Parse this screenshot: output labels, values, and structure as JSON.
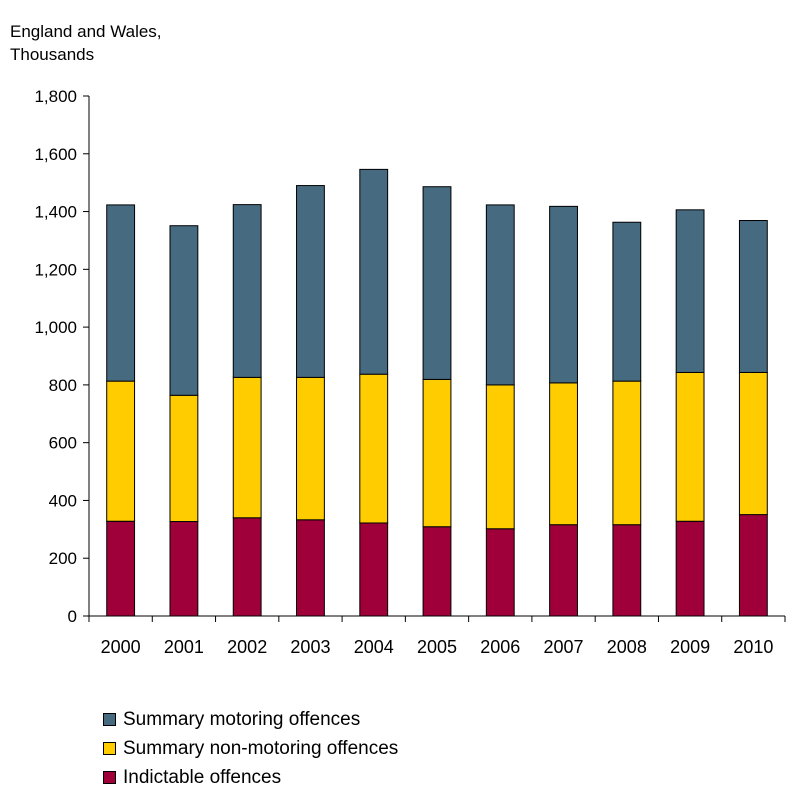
{
  "chart_data": {
    "type": "bar",
    "stacked": true,
    "ylabel_lines": [
      "England and Wales,",
      "Thousands"
    ],
    "categories": [
      "2000",
      "2001",
      "2002",
      "2003",
      "2004",
      "2005",
      "2006",
      "2007",
      "2008",
      "2009",
      "2010"
    ],
    "ylim": [
      0,
      1800
    ],
    "yticks": [
      0,
      200,
      400,
      600,
      800,
      1000,
      1200,
      1400,
      1600,
      1800
    ],
    "ytick_labels": [
      "0",
      "200",
      "400",
      "600",
      "800",
      "1,000",
      "1,200",
      "1,400",
      "1,600",
      "1,800"
    ],
    "grid": false,
    "legend_position": "bottom",
    "series": [
      {
        "name": "Indictable offences",
        "color": "#a0003a",
        "values": [
          328,
          327,
          340,
          333,
          322,
          309,
          302,
          316,
          316,
          328,
          351
        ]
      },
      {
        "name": "Summary non-motoring offences",
        "color": "#ffcc00",
        "values": [
          485,
          437,
          486,
          493,
          515,
          510,
          498,
          491,
          497,
          515,
          492
        ]
      },
      {
        "name": "Summary motoring offences",
        "color": "#466a80",
        "values": [
          610,
          587,
          598,
          664,
          709,
          667,
          623,
          611,
          550,
          563,
          526
        ]
      }
    ]
  }
}
